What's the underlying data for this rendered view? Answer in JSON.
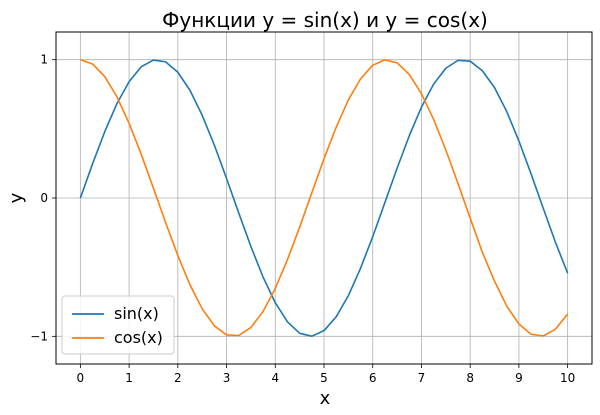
{
  "chart_data": {
    "type": "line",
    "title": "Функции y = sin(x) и y = cos(x)",
    "xlabel": "x",
    "ylabel": "y",
    "xlim": [
      -0.5,
      10.5
    ],
    "ylim": [
      -1.2,
      1.2
    ],
    "x_ticks": [
      0,
      1,
      2,
      3,
      4,
      5,
      6,
      7,
      8,
      9,
      10
    ],
    "x_tick_labels": [
      "0",
      "1",
      "2",
      "3",
      "4",
      "5",
      "6",
      "7",
      "8",
      "9",
      "10"
    ],
    "y_ticks": [
      -1,
      0,
      1
    ],
    "y_tick_labels": [
      "−1",
      "0",
      "1"
    ],
    "grid": true,
    "legend_position": "bottom-left",
    "x": [
      0,
      0.25,
      0.5,
      0.75,
      1,
      1.25,
      1.5,
      1.75,
      2,
      2.25,
      2.5,
      2.75,
      3,
      3.25,
      3.5,
      3.75,
      4,
      4.25,
      4.5,
      4.75,
      5,
      5.25,
      5.5,
      5.75,
      6,
      6.25,
      6.5,
      6.75,
      7,
      7.25,
      7.5,
      7.75,
      8,
      8.25,
      8.5,
      8.75,
      9,
      9.25,
      9.5,
      9.75,
      10
    ],
    "series": [
      {
        "name": "sin(x)",
        "color": "#1f77b4",
        "values": [
          0,
          0.247,
          0.479,
          0.682,
          0.841,
          0.949,
          0.997,
          0.984,
          0.909,
          0.778,
          0.598,
          0.382,
          0.141,
          -0.108,
          -0.351,
          -0.572,
          -0.757,
          -0.895,
          -0.978,
          -0.999,
          -0.959,
          -0.859,
          -0.706,
          -0.508,
          -0.279,
          -0.033,
          0.215,
          0.45,
          0.657,
          0.823,
          0.938,
          0.995,
          0.989,
          0.92,
          0.798,
          0.625,
          0.412,
          0.174,
          -0.075,
          -0.32,
          -0.544
        ]
      },
      {
        "name": "cos(x)",
        "color": "#ff7f0e",
        "values": [
          1,
          0.969,
          0.878,
          0.732,
          0.54,
          0.315,
          0.071,
          -0.178,
          -0.416,
          -0.628,
          -0.801,
          -0.924,
          -0.99,
          -0.994,
          -0.936,
          -0.82,
          -0.654,
          -0.446,
          -0.211,
          0.038,
          0.284,
          0.512,
          0.709,
          0.861,
          0.96,
          0.999,
          0.977,
          0.893,
          0.754,
          0.568,
          0.347,
          0.105,
          -0.146,
          -0.392,
          -0.602,
          -0.781,
          -0.911,
          -0.985,
          -0.997,
          -0.948,
          -0.839
        ]
      }
    ]
  }
}
